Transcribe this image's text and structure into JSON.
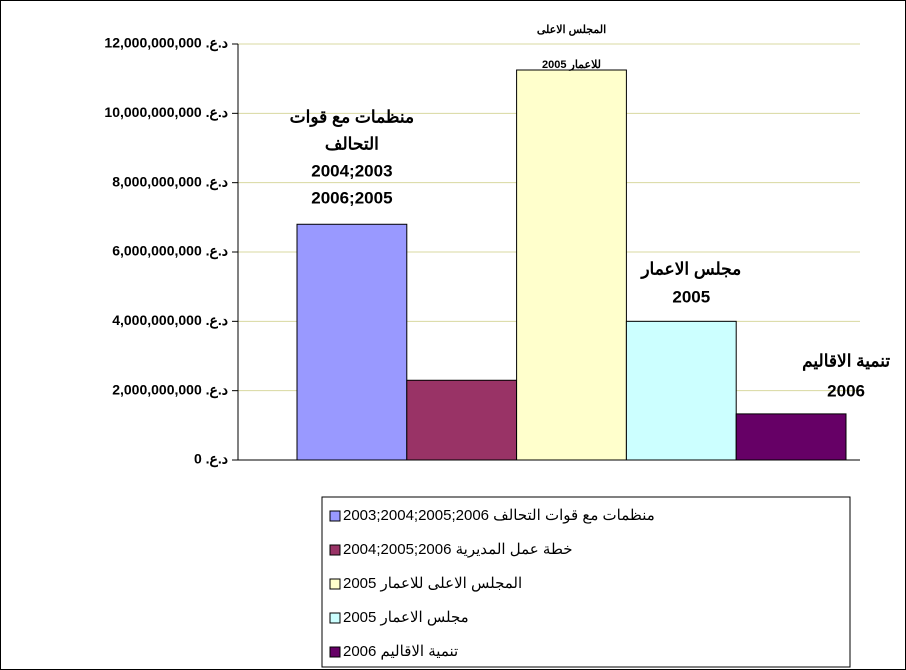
{
  "chart_data": {
    "type": "bar",
    "ylim": [
      0,
      12000000000
    ],
    "yticks": [
      {
        "value": 0,
        "label": "د.ع. 0"
      },
      {
        "value": 2000000000,
        "label": "د.ع. 2,000,000,000"
      },
      {
        "value": 4000000000,
        "label": "د.ع. 4,000,000,000"
      },
      {
        "value": 6000000000,
        "label": "د.ع. 6,000,000,000"
      },
      {
        "value": 8000000000,
        "label": "د.ع. 8,000,000,000"
      },
      {
        "value": 10000000000,
        "label": "د.ع. 10,000,000,000"
      },
      {
        "value": 12000000000,
        "label": "د.ع. 12,000,000,000"
      }
    ],
    "grid": true,
    "legend": "bottom",
    "series": [
      {
        "name": "منظمات مع قوات التحالف 2006;2005;2004;2003",
        "color": "#9999ff",
        "values": [
          6800000000
        ],
        "label_lines": [
          "منظمات مع قوات",
          "التحالف",
          "2004;2003",
          "2006;2005"
        ]
      },
      {
        "name": "خطة عمل المديرية 2006;2005;2004",
        "color": "#993366",
        "values": [
          2300000000
        ]
      },
      {
        "name": "المجلس الاعلى للاعمار 2005",
        "color": "#ffffcc",
        "values": [
          11250000000
        ],
        "label_lines": [
          "المجلس الاعلى",
          "للاعمار 2005"
        ]
      },
      {
        "name": "مجلس الاعمار 2005",
        "color": "#ccffff",
        "values": [
          4000000000
        ],
        "label_lines": [
          "مجلس الاعمار",
          "2005"
        ]
      },
      {
        "name": "تنمية الاقاليم 2006",
        "color": "#660066",
        "values": [
          1330000000
        ],
        "label_lines": [
          "تنمية الاقاليم",
          "2006"
        ]
      }
    ]
  }
}
